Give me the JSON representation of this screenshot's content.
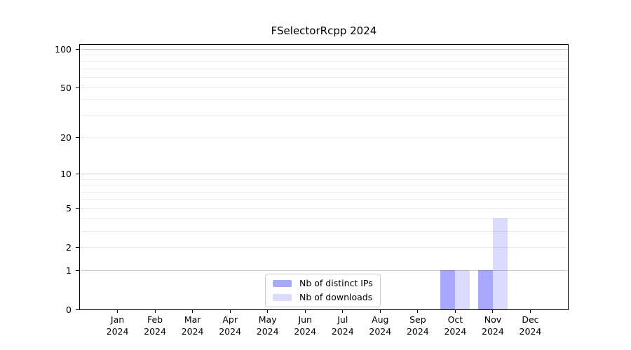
{
  "chart_data": {
    "type": "bar",
    "title": "FSelectorRcpp 2024",
    "months": [
      "Jan",
      "Feb",
      "Mar",
      "Apr",
      "May",
      "Jun",
      "Jul",
      "Aug",
      "Sep",
      "Oct",
      "Nov",
      "Dec"
    ],
    "year_label": "2024",
    "categories": [
      "Jan 2024",
      "Feb 2024",
      "Mar 2024",
      "Apr 2024",
      "May 2024",
      "Jun 2024",
      "Jul 2024",
      "Aug 2024",
      "Sep 2024",
      "Oct 2024",
      "Nov 2024",
      "Dec 2024"
    ],
    "series": [
      {
        "name": "Nb of distinct IPs",
        "color": "#0000ff57",
        "values": [
          0,
          0,
          0,
          0,
          0,
          0,
          0,
          0,
          0,
          1,
          1,
          0
        ]
      },
      {
        "name": "Nb of downloads",
        "color": "#0000ff24",
        "values": [
          0,
          0,
          0,
          0,
          0,
          0,
          0,
          0,
          0,
          1,
          4,
          0
        ]
      }
    ],
    "yscale": "log1p",
    "ylim": [
      0,
      110
    ],
    "ytick_labels": [
      0,
      1,
      2,
      5,
      10,
      20,
      50,
      100
    ],
    "minor_gridlines": [
      2,
      3,
      4,
      5,
      6,
      7,
      8,
      9,
      20,
      30,
      40,
      50,
      60,
      70,
      80,
      90
    ],
    "major_gridlines": [
      1,
      10,
      100
    ],
    "grid": true,
    "legend_position": "lower center",
    "colors": {
      "axis": "#000000",
      "minor_grid": "#ebebeb",
      "major_grid": "#cccccc",
      "background": "#ffffff",
      "text": "#000000"
    }
  }
}
